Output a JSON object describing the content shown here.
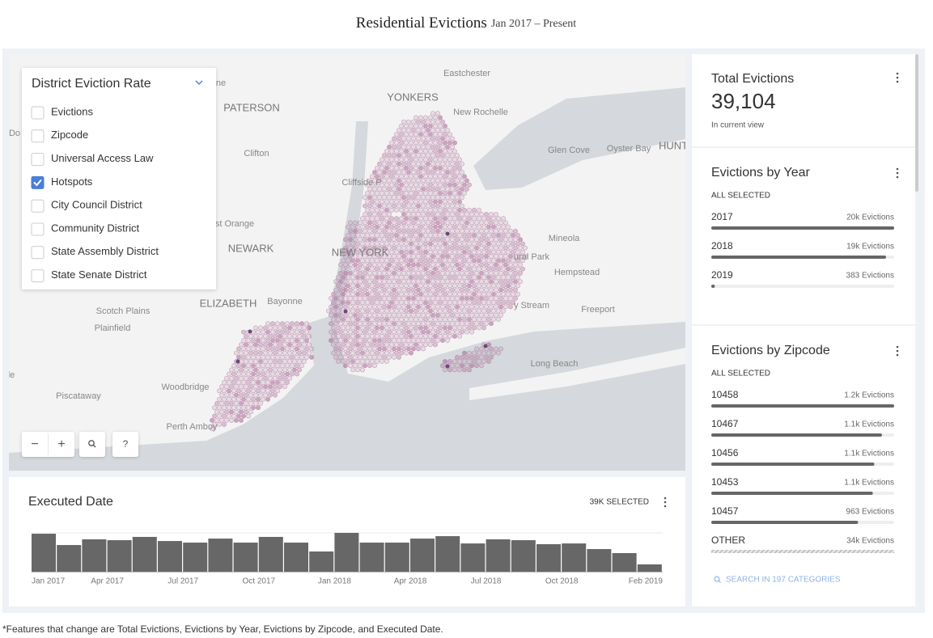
{
  "header": {
    "title": "Residential Evictions",
    "subtitle": "Jan 2017 – Present"
  },
  "map": {
    "labels": [
      "Eastchester",
      "YONKERS",
      "PATERSON",
      "New Rochelle",
      "Clifton",
      "Glen Cove",
      "Oyster Bay",
      "HUNT",
      "Cliffside P",
      "Mineola",
      "st Orange",
      "NEWARK",
      "NEW YORK",
      "ural Park",
      "Hempstead",
      "Scotch Plains",
      "ELIZABETH",
      "Bayonne",
      "y Stream",
      "Freeport",
      "Plainfield",
      "Long Beach",
      "Woodbridge",
      "Piscataway",
      "Perth Amboy",
      "ne",
      "Do",
      "le"
    ],
    "controls": [
      "−",
      "+",
      "?"
    ]
  },
  "layers": {
    "title": "District Eviction Rate",
    "items": [
      {
        "label": "Evictions",
        "checked": false
      },
      {
        "label": "Zipcode",
        "checked": false
      },
      {
        "label": "Universal Access Law",
        "checked": false
      },
      {
        "label": "Hotspots",
        "checked": true
      },
      {
        "label": "City Council District",
        "checked": false
      },
      {
        "label": "Community District",
        "checked": false
      },
      {
        "label": "State Assembly District",
        "checked": false
      },
      {
        "label": "State Senate District",
        "checked": false
      }
    ]
  },
  "total": {
    "title": "Total Evictions",
    "value": "39,104",
    "note": "In current view"
  },
  "by_year": {
    "title": "Evictions by Year",
    "status": "ALL SELECTED",
    "categories": [
      "2017",
      "2018",
      "2019"
    ],
    "values": [
      19800,
      18921,
      383
    ],
    "value_labels": [
      "20k Evictions",
      "19k Evictions",
      "383 Evictions"
    ]
  },
  "by_zipcode": {
    "title": "Evictions by Zipcode",
    "status": "ALL SELECTED",
    "categories": [
      "10458",
      "10467",
      "10456",
      "10453",
      "10457"
    ],
    "values": [
      1200,
      1120,
      1070,
      1060,
      963
    ],
    "value_labels": [
      "1.2k Evictions",
      "1.1k Evictions",
      "1.1k Evictions",
      "1.1k Evictions",
      "963 Evictions"
    ],
    "other": {
      "label": "OTHER",
      "value_label": "34k Evictions"
    },
    "search": "SEARCH IN 197 CATEGORIES"
  },
  "histogram": {
    "title": "Executed Date",
    "selected": "39K SELECTED",
    "values": [
      2030,
      1425,
      1730,
      1685,
      1860,
      1640,
      1555,
      1770,
      1555,
      1860,
      1555,
      1080,
      2075,
      1555,
      1555,
      1770,
      1900,
      1510,
      1730,
      1685,
      1470,
      1510,
      1210,
      995,
      390
    ],
    "x_labels": [
      "Jan 2017",
      "Apr 2017",
      "Jul 2017",
      "Oct 2017",
      "Jan 2018",
      "Apr 2018",
      "Jul 2018",
      "Oct 2018",
      "Feb 2019"
    ]
  },
  "footer": "*Features that change are Total Evictions, Evictions by Year, Evictions by Zipcode, and Executed Date."
}
